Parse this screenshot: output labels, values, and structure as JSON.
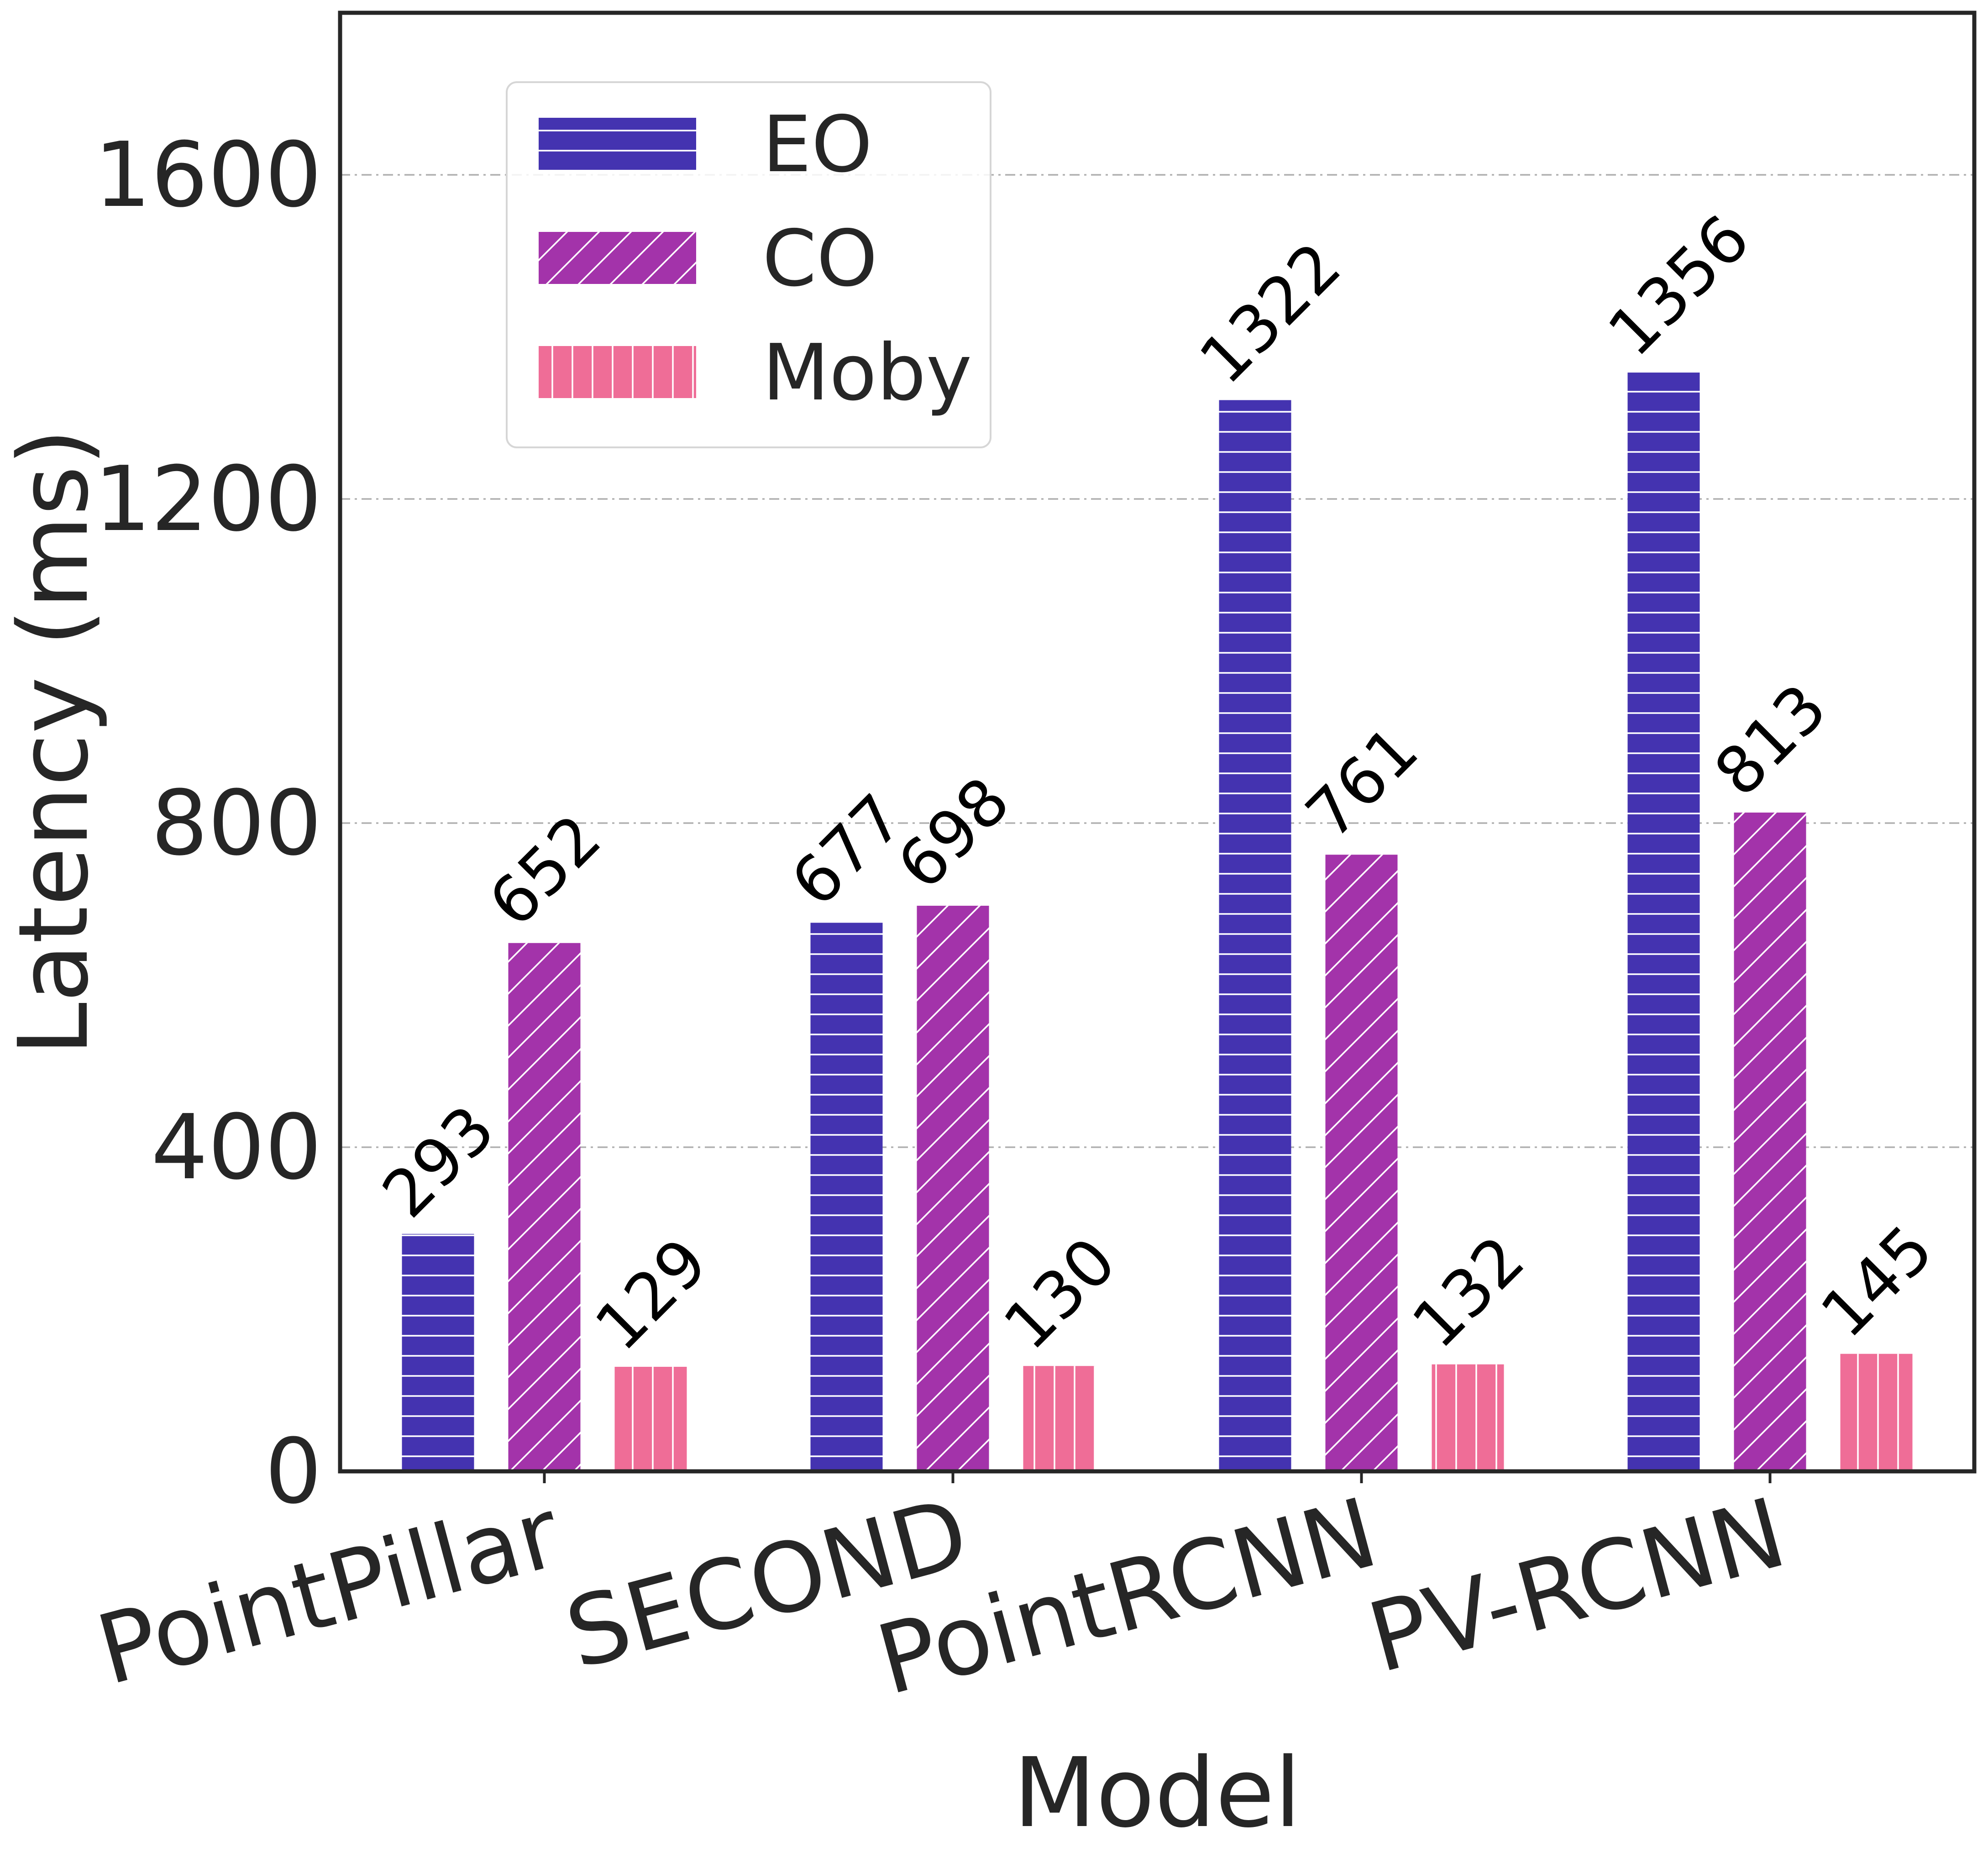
{
  "chart_data": {
    "type": "bar",
    "title": "",
    "xlabel": "Model",
    "ylabel": "Latency (ms)",
    "ylim": [
      0,
      1800
    ],
    "yticks": [
      0,
      400,
      800,
      1200,
      1600
    ],
    "grid": "horizontal dash-dot",
    "legend_position": "top-left",
    "categories": [
      "PointPillar",
      "SECOND",
      "PointRCNN",
      "PV-RCNN"
    ],
    "series": [
      {
        "name": "EO",
        "color": "#4433b0",
        "hatch": "horizontal",
        "values": [
          293,
          677,
          1322,
          1356
        ]
      },
      {
        "name": "CO",
        "color": "#a333aa",
        "hatch": "diagonal",
        "values": [
          652,
          698,
          761,
          813
        ]
      },
      {
        "name": "Moby",
        "color": "#ef6d97",
        "hatch": "vertical",
        "values": [
          129,
          130,
          132,
          145
        ]
      }
    ]
  }
}
